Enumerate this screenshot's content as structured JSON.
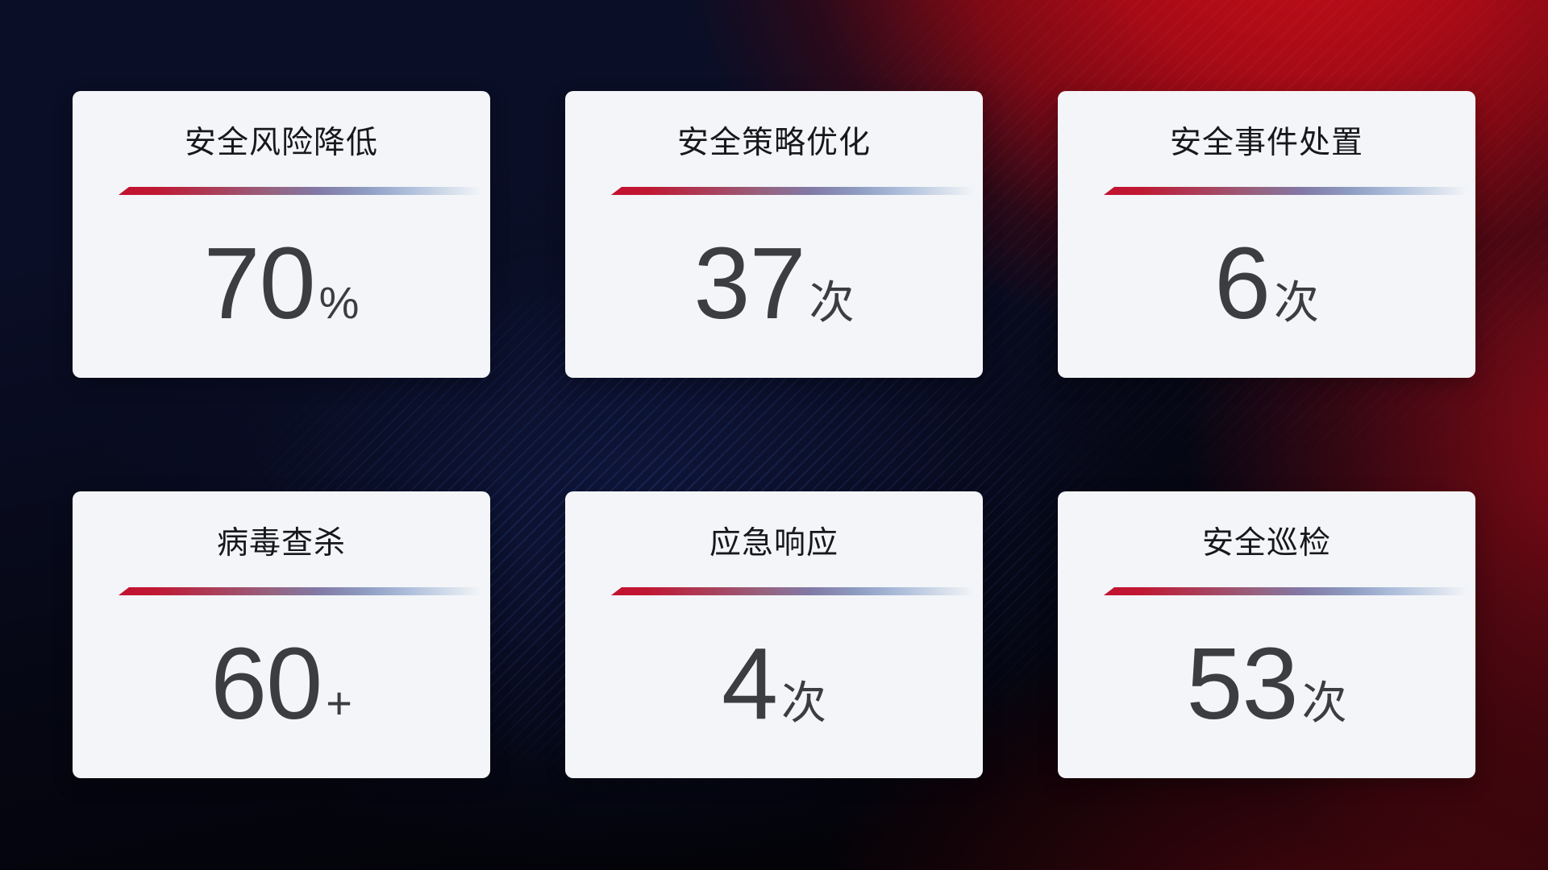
{
  "colors": {
    "card_background": "#f3f5f8",
    "title_text": "#17181c",
    "value_text": "#3c3d40",
    "divider_red": "#c31230",
    "divider_blue": "#aebedb",
    "background_navy": "#0a0e26",
    "background_red": "#c10d19"
  },
  "cards": [
    {
      "title": "安全风险降低",
      "value": "70",
      "suffix": "%"
    },
    {
      "title": "安全策略优化",
      "value": "37",
      "suffix": "次"
    },
    {
      "title": "安全事件处置",
      "value": "6",
      "suffix": "次"
    },
    {
      "title": "病毒查杀",
      "value": "60",
      "suffix": "+"
    },
    {
      "title": "应急响应",
      "value": "4",
      "suffix": "次"
    },
    {
      "title": "安全巡检",
      "value": "53",
      "suffix": "次"
    }
  ]
}
